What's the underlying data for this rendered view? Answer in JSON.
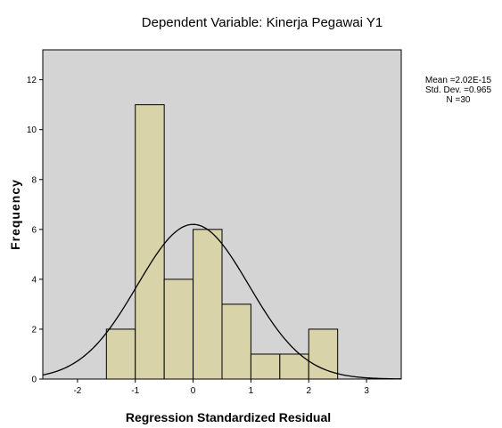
{
  "chart_data": {
    "type": "histogram",
    "title": "Dependent Variable: Kinerja Pegawai Y1",
    "xlabel": "Regression Standardized Residual",
    "ylabel": "Frequency",
    "xlim": [
      -2.6,
      3.6
    ],
    "ylim": [
      0,
      13.2
    ],
    "x_ticks": [
      -2,
      -1,
      0,
      1,
      2,
      3
    ],
    "y_ticks": [
      0,
      2,
      4,
      6,
      8,
      10,
      12
    ],
    "bins": [
      {
        "start": -1.5,
        "end": -1.0,
        "count": 2
      },
      {
        "start": -1.0,
        "end": -0.5,
        "count": 11
      },
      {
        "start": -0.5,
        "end": 0.0,
        "count": 4
      },
      {
        "start": 0.0,
        "end": 0.5,
        "count": 6
      },
      {
        "start": 0.5,
        "end": 1.0,
        "count": 3
      },
      {
        "start": 1.0,
        "end": 1.5,
        "count": 1
      },
      {
        "start": 1.5,
        "end": 2.0,
        "count": 1
      },
      {
        "start": 2.0,
        "end": 2.5,
        "count": 2
      }
    ],
    "normal_curve": {
      "mean": 0.0,
      "sd": 0.965,
      "n": 30,
      "bin_width": 0.5
    },
    "stats": {
      "mean_text": "Mean =2.02E-15",
      "sd_text": "Std. Dev. =0.965",
      "n_text": "N =30"
    },
    "colors": {
      "plot_background": "#d4d4d4",
      "bar_fill": "#d8d3a8",
      "bar_stroke": "#000000",
      "curve": "#000000"
    },
    "grid": false,
    "legend": "none"
  }
}
